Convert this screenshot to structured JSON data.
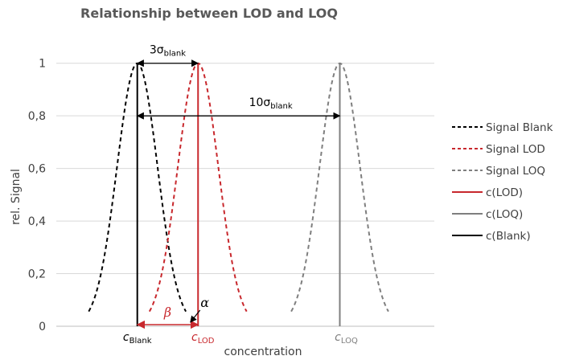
{
  "chart_data": {
    "type": "line",
    "title": "Relationship between LOD and LOQ",
    "xlabel": "concentration",
    "ylabel": "rel. Signal",
    "ylim": [
      0,
      1.1
    ],
    "yticks": [
      "0",
      "0,2",
      "0,4",
      "0,6",
      "0,8",
      "1"
    ],
    "ytick_values": [
      0,
      0.2,
      0.4,
      0.6,
      0.8,
      1
    ],
    "xlim": [
      0,
      14
    ],
    "grid": true,
    "legend_position": "right",
    "series": [
      {
        "name": "Signal Blank",
        "style": "dashed",
        "color": "#000000",
        "shape": "gaussian",
        "center": 3,
        "width": 0.75,
        "span": [
          1.2,
          4.8
        ]
      },
      {
        "name": "Signal LOD",
        "style": "dashed",
        "color": "#c8282d",
        "shape": "gaussian",
        "center": 5.25,
        "width": 0.75,
        "span": [
          3.45,
          7.05
        ]
      },
      {
        "name": "Signal LOQ",
        "style": "dashed",
        "color": "#7f7f7f",
        "shape": "gaussian",
        "center": 10.5,
        "width": 0.75,
        "span": [
          8.7,
          12.3
        ]
      },
      {
        "name": "c(LOD)",
        "style": "solid",
        "color": "#c8282d",
        "shape": "vline",
        "x": 5.25,
        "y": [
          0,
          1
        ]
      },
      {
        "name": "c(LOQ)",
        "style": "solid",
        "color": "#7f7f7f",
        "shape": "vline",
        "x": 10.5,
        "y": [
          0,
          1
        ]
      },
      {
        "name": "c(Blank)",
        "style": "solid",
        "color": "#000000",
        "shape": "vline",
        "x": 3,
        "y": [
          0,
          1
        ]
      }
    ],
    "annotations": {
      "three_sigma": {
        "prefix": "3σ",
        "sub": "blank",
        "from": 3,
        "to": 5.25,
        "y": 1
      },
      "ten_sigma": {
        "prefix": "10σ",
        "sub": "blank",
        "from": 3,
        "to": 10.5,
        "y": 0.8
      },
      "beta": {
        "text": "β",
        "from": 3,
        "to": 5.25,
        "y": 0
      },
      "alpha": {
        "text": "α"
      },
      "c_blank": {
        "main": "c",
        "sub": "Blank"
      },
      "c_lod": {
        "main": "c",
        "sub": "LOD"
      },
      "c_loq": {
        "main": "c",
        "sub": "LOQ"
      }
    }
  }
}
